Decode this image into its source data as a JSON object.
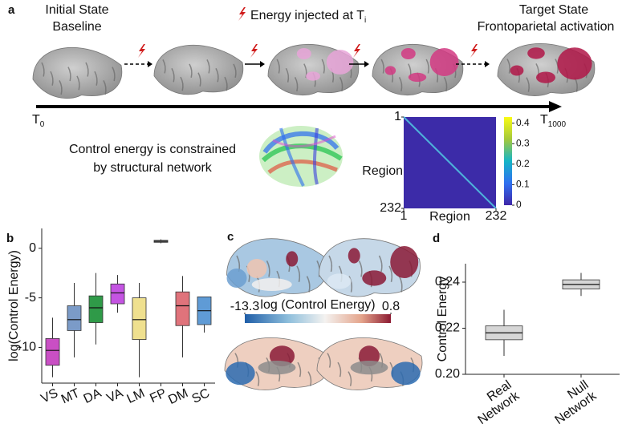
{
  "panel_labels": [
    "a",
    "b",
    "c",
    "d"
  ],
  "diagram": {
    "initial_state": [
      "Initial State",
      "Baseline"
    ],
    "energy_label": {
      "text": "Energy injected at T",
      "sub": "i"
    },
    "target_state": [
      "Target State",
      "Frontoparietal activation"
    ],
    "time_start": {
      "text": "T",
      "sub": "0"
    },
    "time_end": {
      "text": "T",
      "sub": "1000"
    },
    "constraint_note": [
      "Control energy is constrained",
      "by structural network"
    ]
  },
  "chart_data": [
    {
      "type": "heatmap",
      "xlabel": "Region",
      "ylabel": "Region",
      "xlim": [
        1,
        232
      ],
      "ylim": [
        1,
        232
      ],
      "xticks": [
        1,
        232
      ],
      "yticks": [
        1,
        232
      ],
      "colorbar": {
        "lim": [
          0,
          0.43
        ],
        "ticks": [
          0,
          0.1,
          0.2,
          0.3,
          0.4
        ]
      }
    },
    {
      "type": "box",
      "ylabel": "log(Control Energy)",
      "categories": [
        "VS",
        "MT",
        "DA",
        "VA",
        "LM",
        "FP",
        "DM",
        "SC"
      ],
      "colors": [
        "#c94fc4",
        "#7b9bc8",
        "#2f9a48",
        "#c454e2",
        "#efe08f",
        "#9a9a9a",
        "#e0737b",
        "#5f9bd6"
      ],
      "boxes": [
        {
          "min": -13,
          "q1": -11.8,
          "median": -10.3,
          "q3": -9.1,
          "max": -7
        },
        {
          "min": -11,
          "q1": -8.3,
          "median": -7.2,
          "q3": -5.8,
          "max": -3.5
        },
        {
          "min": -9.7,
          "q1": -7.5,
          "median": -6,
          "q3": -4.8,
          "max": -2.5
        },
        {
          "min": -6.5,
          "q1": -5.6,
          "median": -4.5,
          "q3": -3.6,
          "max": -2.7
        },
        {
          "min": -13,
          "q1": -9.2,
          "median": -7.2,
          "q3": -5,
          "max": -3.5
        },
        {
          "min": 0.5,
          "q1": 0.6,
          "median": 0.7,
          "q3": 0.8,
          "max": 0.9
        },
        {
          "min": -11,
          "q1": -7.8,
          "median": -5.8,
          "q3": -4.4,
          "max": -2.8
        },
        {
          "min": -8.5,
          "q1": -7.7,
          "median": -6.3,
          "q3": -4.9,
          "max": -4.9
        }
      ],
      "ylim": [
        -13.6,
        2
      ],
      "yticks": [
        0,
        -5,
        -10
      ]
    },
    {
      "type": "colormap",
      "title": "log (Control Energy)",
      "lim": [
        -13.3,
        0.8
      ],
      "ticks": [
        -13.3,
        0.8
      ]
    },
    {
      "type": "box",
      "ylabel": "Control Energy",
      "categories": [
        "Real Network",
        "Null Network"
      ],
      "colors": [
        "#d6d6d6",
        "#d6d6d6"
      ],
      "boxes": [
        {
          "min": 0.208,
          "q1": 0.215,
          "median": 0.218,
          "q3": 0.221,
          "max": 0.228
        },
        {
          "min": 0.234,
          "q1": 0.237,
          "median": 0.239,
          "q3": 0.241,
          "max": 0.244
        }
      ],
      "ylim": [
        0.2,
        0.248
      ],
      "yticks": [
        {
          "value": 0.2,
          "label": "0.20"
        },
        {
          "value": 0.22,
          "label": "0.22"
        },
        {
          "value": 0.24,
          "label": "0.24"
        }
      ]
    }
  ]
}
